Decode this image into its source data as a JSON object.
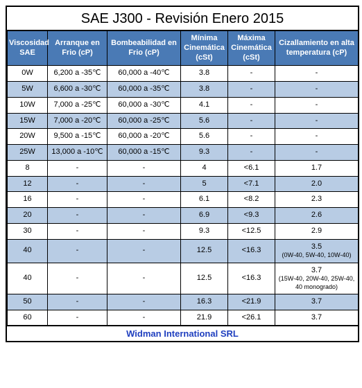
{
  "title": "SAE J300 - Revisión Enero 2015",
  "footer": "Widman International SRL",
  "colors": {
    "header_bg": "#4a7ab5",
    "header_fg": "#ffffff",
    "row_alt_bg": "#b8cce4",
    "row_plain_bg": "#ffffff",
    "border": "#000000",
    "footer_fg": "#1f3fbf"
  },
  "columns": [
    "Viscosidad SAE",
    "Arranque en Frio (cP)",
    "Bombeabilidad en Frio (cP)",
    "Mínima Cinemática (cSt)",
    "Máxima Cinemática (cSt)",
    "Cizallamiento en alta temperatura (cP)"
  ],
  "rows": [
    {
      "sae": "0W",
      "arr": "6,200 a -35℃",
      "bom": "60,000 a -40℃",
      "min": "3.8",
      "max": "-",
      "ciz": "-",
      "alt": false
    },
    {
      "sae": "5W",
      "arr": "6,600 a -30℃",
      "bom": "60,000 a -35℃",
      "min": "3.8",
      "max": "-",
      "ciz": "-",
      "alt": true
    },
    {
      "sae": "10W",
      "arr": "7,000 a -25℃",
      "bom": "60,000 a -30℃",
      "min": "4.1",
      "max": "-",
      "ciz": "-",
      "alt": false
    },
    {
      "sae": "15W",
      "arr": "7,000 a -20℃",
      "bom": "60,000 a -25℃",
      "min": "5.6",
      "max": "-",
      "ciz": "-",
      "alt": true
    },
    {
      "sae": "20W",
      "arr": "9,500 a -15℃",
      "bom": "60,000 a -20℃",
      "min": "5.6",
      "max": "-",
      "ciz": "-",
      "alt": false
    },
    {
      "sae": "25W",
      "arr": "13,000 a -10℃",
      "bom": "60,000 a -15℃",
      "min": "9.3",
      "max": "-",
      "ciz": "-",
      "alt": true
    },
    {
      "sae": "8",
      "arr": "-",
      "bom": "-",
      "min": "4",
      "max": "<6.1",
      "ciz": "1.7",
      "alt": false
    },
    {
      "sae": "12",
      "arr": "-",
      "bom": "-",
      "min": "5",
      "max": "<7.1",
      "ciz": "2.0",
      "alt": true
    },
    {
      "sae": "16",
      "arr": "-",
      "bom": "-",
      "min": "6.1",
      "max": "<8.2",
      "ciz": "2.3",
      "alt": false
    },
    {
      "sae": "20",
      "arr": "-",
      "bom": "-",
      "min": "6.9",
      "max": "<9.3",
      "ciz": "2.6",
      "alt": true
    },
    {
      "sae": "30",
      "arr": "-",
      "bom": "-",
      "min": "9.3",
      "max": "<12.5",
      "ciz": "2.9",
      "alt": false
    },
    {
      "sae": "40",
      "arr": "-",
      "bom": "-",
      "min": "12.5",
      "max": "<16.3",
      "ciz": "3.5",
      "ciz_sub": "(0W-40, 5W-40, 10W-40)",
      "alt": true
    },
    {
      "sae": "40",
      "arr": "-",
      "bom": "-",
      "min": "12.5",
      "max": "<16.3",
      "ciz": "3.7",
      "ciz_sub": "(15W-40, 20W-40, 25W-40, 40 monogrado)",
      "alt": false
    },
    {
      "sae": "50",
      "arr": "-",
      "bom": "-",
      "min": "16.3",
      "max": "<21.9",
      "ciz": "3.7",
      "alt": true
    },
    {
      "sae": "60",
      "arr": "-",
      "bom": "-",
      "min": "21.9",
      "max": "<26.1",
      "ciz": "3.7",
      "alt": false
    }
  ]
}
